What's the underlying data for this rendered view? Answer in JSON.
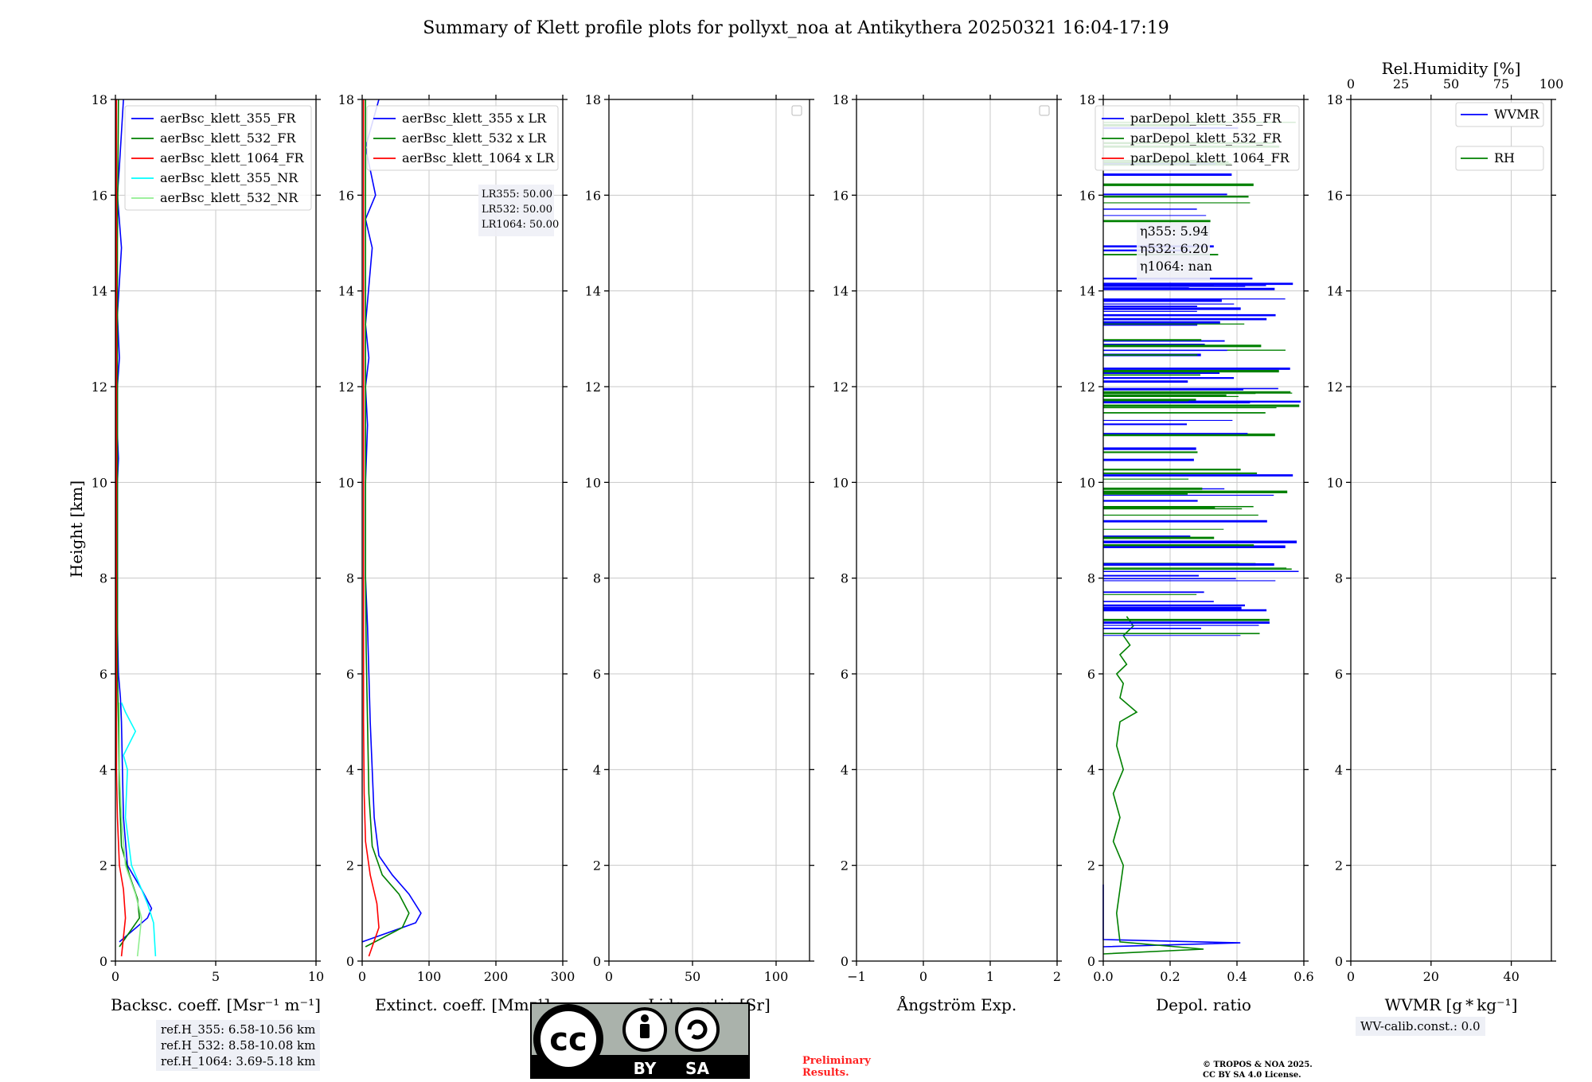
{
  "title": "Summary of Klett profile plots for pollyxt_noa at Antikythera 20250321 16:04-17:19",
  "ylabel": "Height [km]",
  "ylim": [
    0,
    18
  ],
  "yticks": [
    "0",
    "2",
    "4",
    "6",
    "8",
    "10",
    "12",
    "14",
    "16",
    "18"
  ],
  "colors": {
    "b355": "#0000ff",
    "g532": "#008000",
    "r1064": "#ff0000",
    "c355nr": "#00ffff",
    "lg532nr": "#90ee90"
  },
  "chart_data": [
    {
      "type": "line",
      "xlabel": "Backsc. coeff. [Msr⁻¹ m⁻¹]",
      "xlim": [
        0,
        10
      ],
      "xticks": [
        "0",
        "5",
        "10"
      ],
      "legend": "top-right",
      "series": [
        {
          "name": "aerBsc_klett_355_FR",
          "color": "#0000ff",
          "x": [
            0.2,
            1.6,
            1.8,
            1.3,
            0.6,
            0.4,
            0.35,
            0.3,
            0.25,
            0.15,
            0.1,
            0.1,
            0.1,
            0.1,
            0.15,
            0.1,
            0.1,
            0.2,
            0.1,
            0.3,
            0.1,
            0.2,
            0.4
          ],
          "y": [
            0.4,
            0.9,
            1.1,
            1.5,
            2.0,
            3.0,
            4.0,
            5.0,
            5.5,
            6.0,
            7.0,
            8.0,
            9.0,
            10.0,
            10.5,
            11.0,
            12.0,
            12.6,
            13.5,
            14.9,
            16.0,
            16.6,
            18.0
          ]
        },
        {
          "name": "aerBsc_klett_532_FR",
          "color": "#008000",
          "x": [
            0.2,
            1.2,
            1.1,
            0.7,
            0.3,
            0.2,
            0.15,
            0.1,
            0.1,
            0.1,
            0.1,
            0.1,
            0.1,
            0.15
          ],
          "y": [
            0.3,
            0.9,
            1.3,
            1.8,
            2.4,
            3.5,
            5.0,
            6.0,
            7.0,
            8.5,
            10.0,
            12.0,
            15.0,
            18.0
          ]
        },
        {
          "name": "aerBsc_klett_1064_FR",
          "color": "#ff0000",
          "x": [
            0.3,
            0.5,
            0.4,
            0.2,
            0.1,
            0.05,
            0.05,
            0.05,
            0.05,
            0.05,
            0.05
          ],
          "y": [
            0.1,
            0.9,
            1.5,
            2.0,
            3.0,
            4.0,
            6.0,
            8.0,
            12.0,
            16.0,
            18.0
          ]
        },
        {
          "name": "aerBsc_klett_355_NR",
          "color": "#00ffff",
          "x": [
            2.0,
            1.9,
            1.6,
            0.8,
            0.5,
            0.6,
            0.4,
            1.0,
            0.5,
            0.3
          ],
          "y": [
            0.1,
            0.8,
            1.2,
            2.0,
            3.0,
            4.0,
            4.3,
            4.8,
            5.2,
            5.4
          ]
        },
        {
          "name": "aerBsc_klett_532_NR",
          "color": "#90ee90",
          "x": [
            1.1,
            1.3,
            1.0,
            0.5,
            0.3,
            0.2,
            0.2
          ],
          "y": [
            0.1,
            0.9,
            1.4,
            2.0,
            3.0,
            4.0,
            5.4
          ]
        }
      ],
      "ref_box": [
        "ref.H_355: 6.58-10.56 km",
        "ref.H_532: 8.58-10.08 km",
        "ref.H_1064: 3.69-5.18 km"
      ]
    },
    {
      "type": "line",
      "xlabel": "Extinct. coeff. [Mm⁻¹]",
      "xlim": [
        0,
        300
      ],
      "xticks": [
        "0",
        "100",
        "200",
        "300"
      ],
      "legend": "top-right",
      "series": [
        {
          "name": "aerBsc_klett_355 x LR",
          "color": "#0000ff",
          "x": [
            0,
            80,
            88,
            70,
            45,
            25,
            18,
            15,
            12,
            10,
            8,
            5,
            5,
            5,
            8,
            5,
            10,
            5,
            15,
            5,
            20,
            5,
            25
          ],
          "y": [
            0.4,
            0.8,
            1.0,
            1.4,
            1.8,
            2.2,
            3.0,
            4.0,
            5.0,
            6.0,
            7.0,
            8.0,
            9.0,
            10.0,
            11.2,
            12.0,
            12.6,
            13.3,
            14.9,
            15.5,
            16.0,
            17.0,
            18.0
          ]
        },
        {
          "name": "aerBsc_klett_532 x LR",
          "color": "#008000",
          "x": [
            5,
            60,
            70,
            55,
            30,
            15,
            10,
            8,
            6,
            5,
            5,
            5,
            5
          ],
          "y": [
            0.3,
            0.7,
            1.0,
            1.4,
            1.8,
            2.4,
            3.5,
            5.0,
            6.5,
            8.0,
            10.0,
            14.0,
            18.0
          ]
        },
        {
          "name": "aerBsc_klett_1064 x LR",
          "color": "#ff0000",
          "x": [
            10,
            25,
            22,
            12,
            5,
            3,
            2,
            2,
            2,
            2
          ],
          "y": [
            0.1,
            0.7,
            1.2,
            1.8,
            2.5,
            3.5,
            5.0,
            8.0,
            12.0,
            18.0
          ]
        }
      ],
      "annotation": [
        "LR355: 50.00",
        "LR532: 50.00",
        "LR1064: 50.00"
      ]
    },
    {
      "type": "line",
      "xlabel": "Lidar ratio [Sr]",
      "xlim": [
        0,
        120
      ],
      "xticks": [
        "0",
        "50",
        "100"
      ],
      "series": []
    },
    {
      "type": "line",
      "xlabel": "Ångström Exp.",
      "xlim": [
        -1,
        2
      ],
      "xticks": [
        "−1",
        "0",
        "1",
        "2"
      ],
      "series": []
    },
    {
      "type": "line",
      "xlabel": "Depol. ratio",
      "xlim": [
        0,
        0.6
      ],
      "xticks": [
        "0.0",
        "0.2",
        "0.4",
        "0.6"
      ],
      "legend": "top-right",
      "series": [
        {
          "name": "parDepol_klett_355_FR",
          "color": "#0000ff",
          "x": [
            0.0,
            0.41,
            0.0,
            0.0,
            0.0
          ],
          "y": [
            0.3,
            0.38,
            0.45,
            1.0,
            1.6
          ]
        },
        {
          "name": "parDepol_klett_532_FR",
          "color": "#008000",
          "x": [
            0.0,
            0.3,
            0.05,
            0.04,
            0.06,
            0.03,
            0.05,
            0.03,
            0.06,
            0.04,
            0.05,
            0.1,
            0.05,
            0.06,
            0.04,
            0.07,
            0.05,
            0.08,
            0.06,
            0.09,
            0.07
          ],
          "y": [
            0.15,
            0.25,
            0.4,
            1.0,
            2.0,
            2.5,
            3.0,
            3.5,
            4.0,
            4.5,
            5.0,
            5.2,
            5.5,
            5.8,
            6.0,
            6.2,
            6.4,
            6.6,
            6.8,
            7.0,
            7.2
          ]
        },
        {
          "name": "parDepol_klett_1064_FR",
          "color": "#ff0000",
          "x": [],
          "y": []
        }
      ],
      "annotation": [
        "η355: 5.94",
        "η532: 6.20",
        "η1064: nan"
      ]
    },
    {
      "type": "line",
      "xlabel": "WVMR [g * kg⁻¹]",
      "xlim": [
        0,
        50
      ],
      "xticks": [
        "0",
        "20",
        "40"
      ],
      "top_xlabel": "Rel.Humidity [%]",
      "top_xlim": [
        0,
        100
      ],
      "top_xticks": [
        "0",
        "25",
        "50",
        "75",
        "100"
      ],
      "legend": "top-right",
      "series": [
        {
          "name": "WVMR",
          "color": "#0000ff",
          "x": [],
          "y": []
        },
        {
          "name": "RH",
          "color": "#008000",
          "x": [],
          "y": []
        }
      ],
      "annotation": [
        "WV-calib.const.: 0.0"
      ]
    }
  ],
  "footer": {
    "cc_text": "cc",
    "by_label": "BY",
    "sa_label": "SA",
    "preliminary": "Preliminary",
    "results": "Results.",
    "copyright_line1": "© TROPOS & NOA 2025.",
    "copyright_line2": "CC BY SA 4.0 License."
  }
}
